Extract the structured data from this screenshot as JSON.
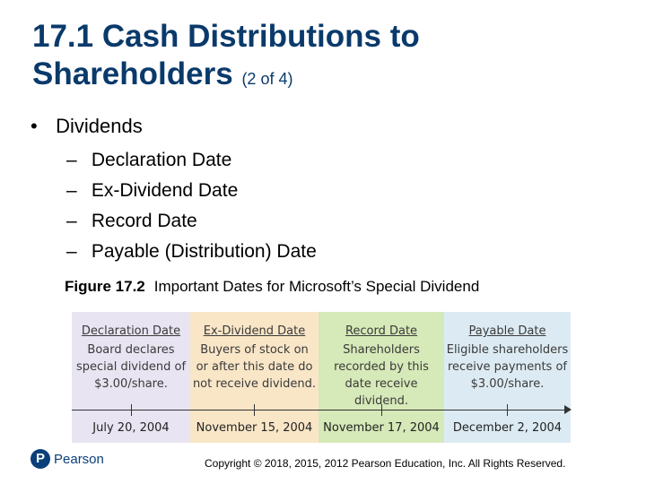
{
  "slide": {
    "title": "17.1 Cash Distributions to Shareholders",
    "title_suffix": "(2 of 4)",
    "bullet": "Dividends",
    "bullet_marker": "•",
    "sub_marker": "–",
    "subitems": [
      "Declaration Date",
      "Ex-Dividend Date",
      "Record Date",
      "Payable (Distribution) Date"
    ],
    "caption_label": "Figure 17.2",
    "caption_text": "Important Dates for Microsoft’s Special Dividend"
  },
  "figure": {
    "columns": [
      {
        "heading": "Declaration Date",
        "lines": [
          "Board declares",
          "special dividend of",
          "$3.00/share."
        ],
        "date": "July 20, 2004",
        "color": "#e8e4f2"
      },
      {
        "heading": "Ex-Dividend Date",
        "lines": [
          "Buyers of stock on",
          "or after this date do",
          "not receive dividend."
        ],
        "date": "November 15, 2004",
        "color": "#f9e6c7"
      },
      {
        "heading": "Record Date",
        "lines": [
          "Shareholders",
          "recorded by this",
          "date receive dividend."
        ],
        "date": "November 17, 2004",
        "color": "#d6e9b8"
      },
      {
        "heading": "Payable Date",
        "lines": [
          "Eligible shareholders",
          "receive payments of",
          "$3.00/share."
        ],
        "date": "December 2, 2004",
        "color": "#dcebf3"
      }
    ]
  },
  "footer": {
    "logo_letter": "P",
    "logo_text": "Pearson",
    "copyright": "Copyright © 2018, 2015, 2012 Pearson Education, Inc. All Rights Reserved."
  },
  "colors": {
    "title": "#0a3a6b",
    "brand": "#0b3f7a"
  }
}
